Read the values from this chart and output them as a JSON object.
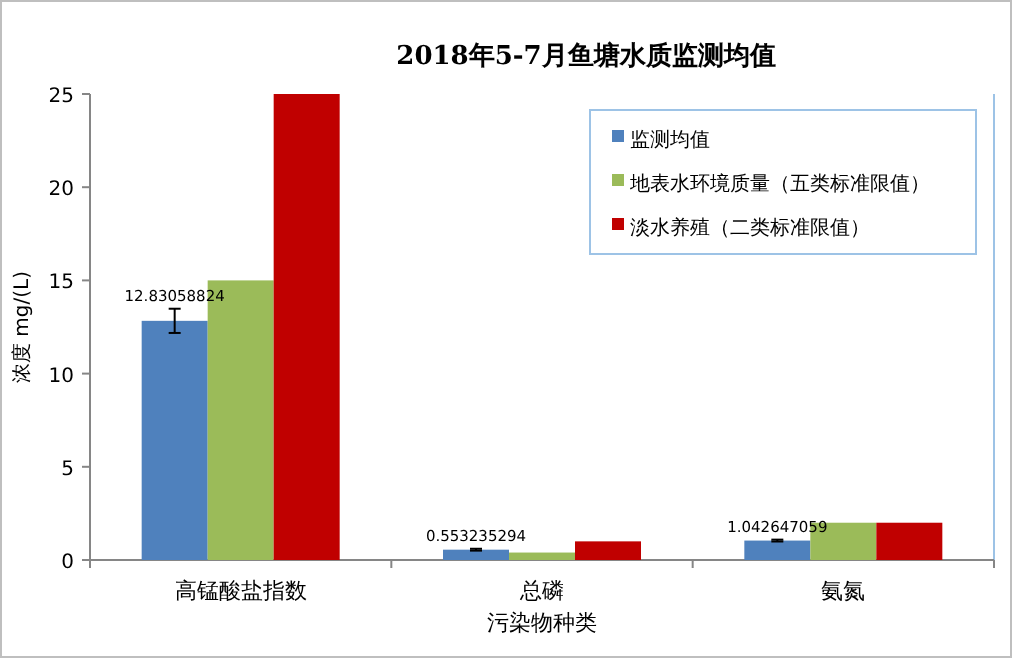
{
  "chart_data": {
    "type": "bar",
    "title": "2018年5-7月鱼塘水质监测均值",
    "xlabel": "污染物种类",
    "ylabel": "浓度 mg/(L)",
    "categories": [
      "高锰酸盐指数",
      "总磷",
      "氨氮"
    ],
    "series": [
      {
        "name": "监测均值",
        "color": "#4f81bd",
        "values": [
          12.83058824,
          0.553235294,
          1.042647059
        ],
        "errors": [
          0.65,
          0.05,
          0.05
        ],
        "value_labels": [
          "12.83058824",
          "0.553235294",
          "1.042647059"
        ]
      },
      {
        "name": "地表水环境质量（五类标准限值）",
        "color": "#9bbb59",
        "values": [
          15,
          0.4,
          2
        ]
      },
      {
        "name": "淡水养殖（二类标准限值）",
        "color": "#c00000",
        "values": [
          25,
          1,
          2
        ]
      }
    ],
    "ylim": [
      0,
      25
    ],
    "yticks": [
      0,
      5,
      10,
      15,
      20,
      25
    ],
    "grid": false,
    "legend": "top right"
  }
}
